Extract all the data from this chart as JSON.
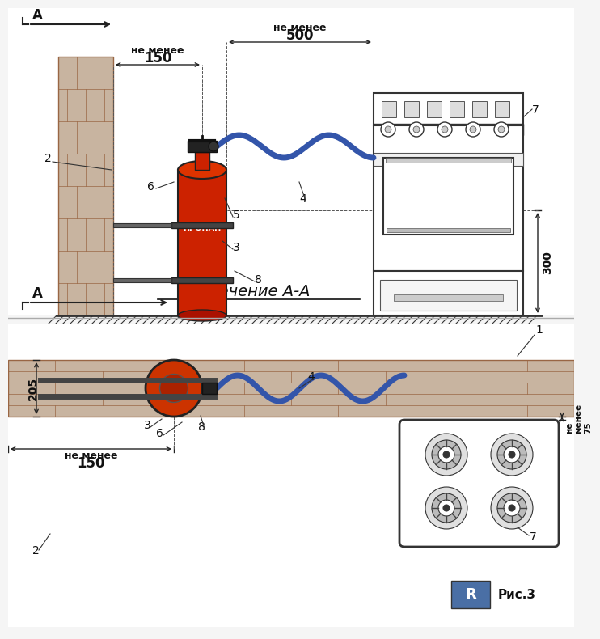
{
  "bg_color": "#f5f5f5",
  "title_section": "Сечение А-А",
  "label_A": "А",
  "label_propan": "ПРОПАН",
  "label_ne_menee_150": "не менее\n150",
  "label_ne_menee_500": "не менее\n500",
  "label_300": "300",
  "label_205": "205",
  "label_ne_menee_75": "не\nменее\n75",
  "label_ne_menee_150b": "не менее\n150",
  "ris_label": "Рис.3",
  "wall_color": "#c8b4a0",
  "wall_line": "#996644",
  "cyl_red": "#cc2200",
  "cyl_dark": "#aa1100",
  "hose_color": "#3355aa",
  "bracket_color": "#444444",
  "stove_outline": "#333333"
}
